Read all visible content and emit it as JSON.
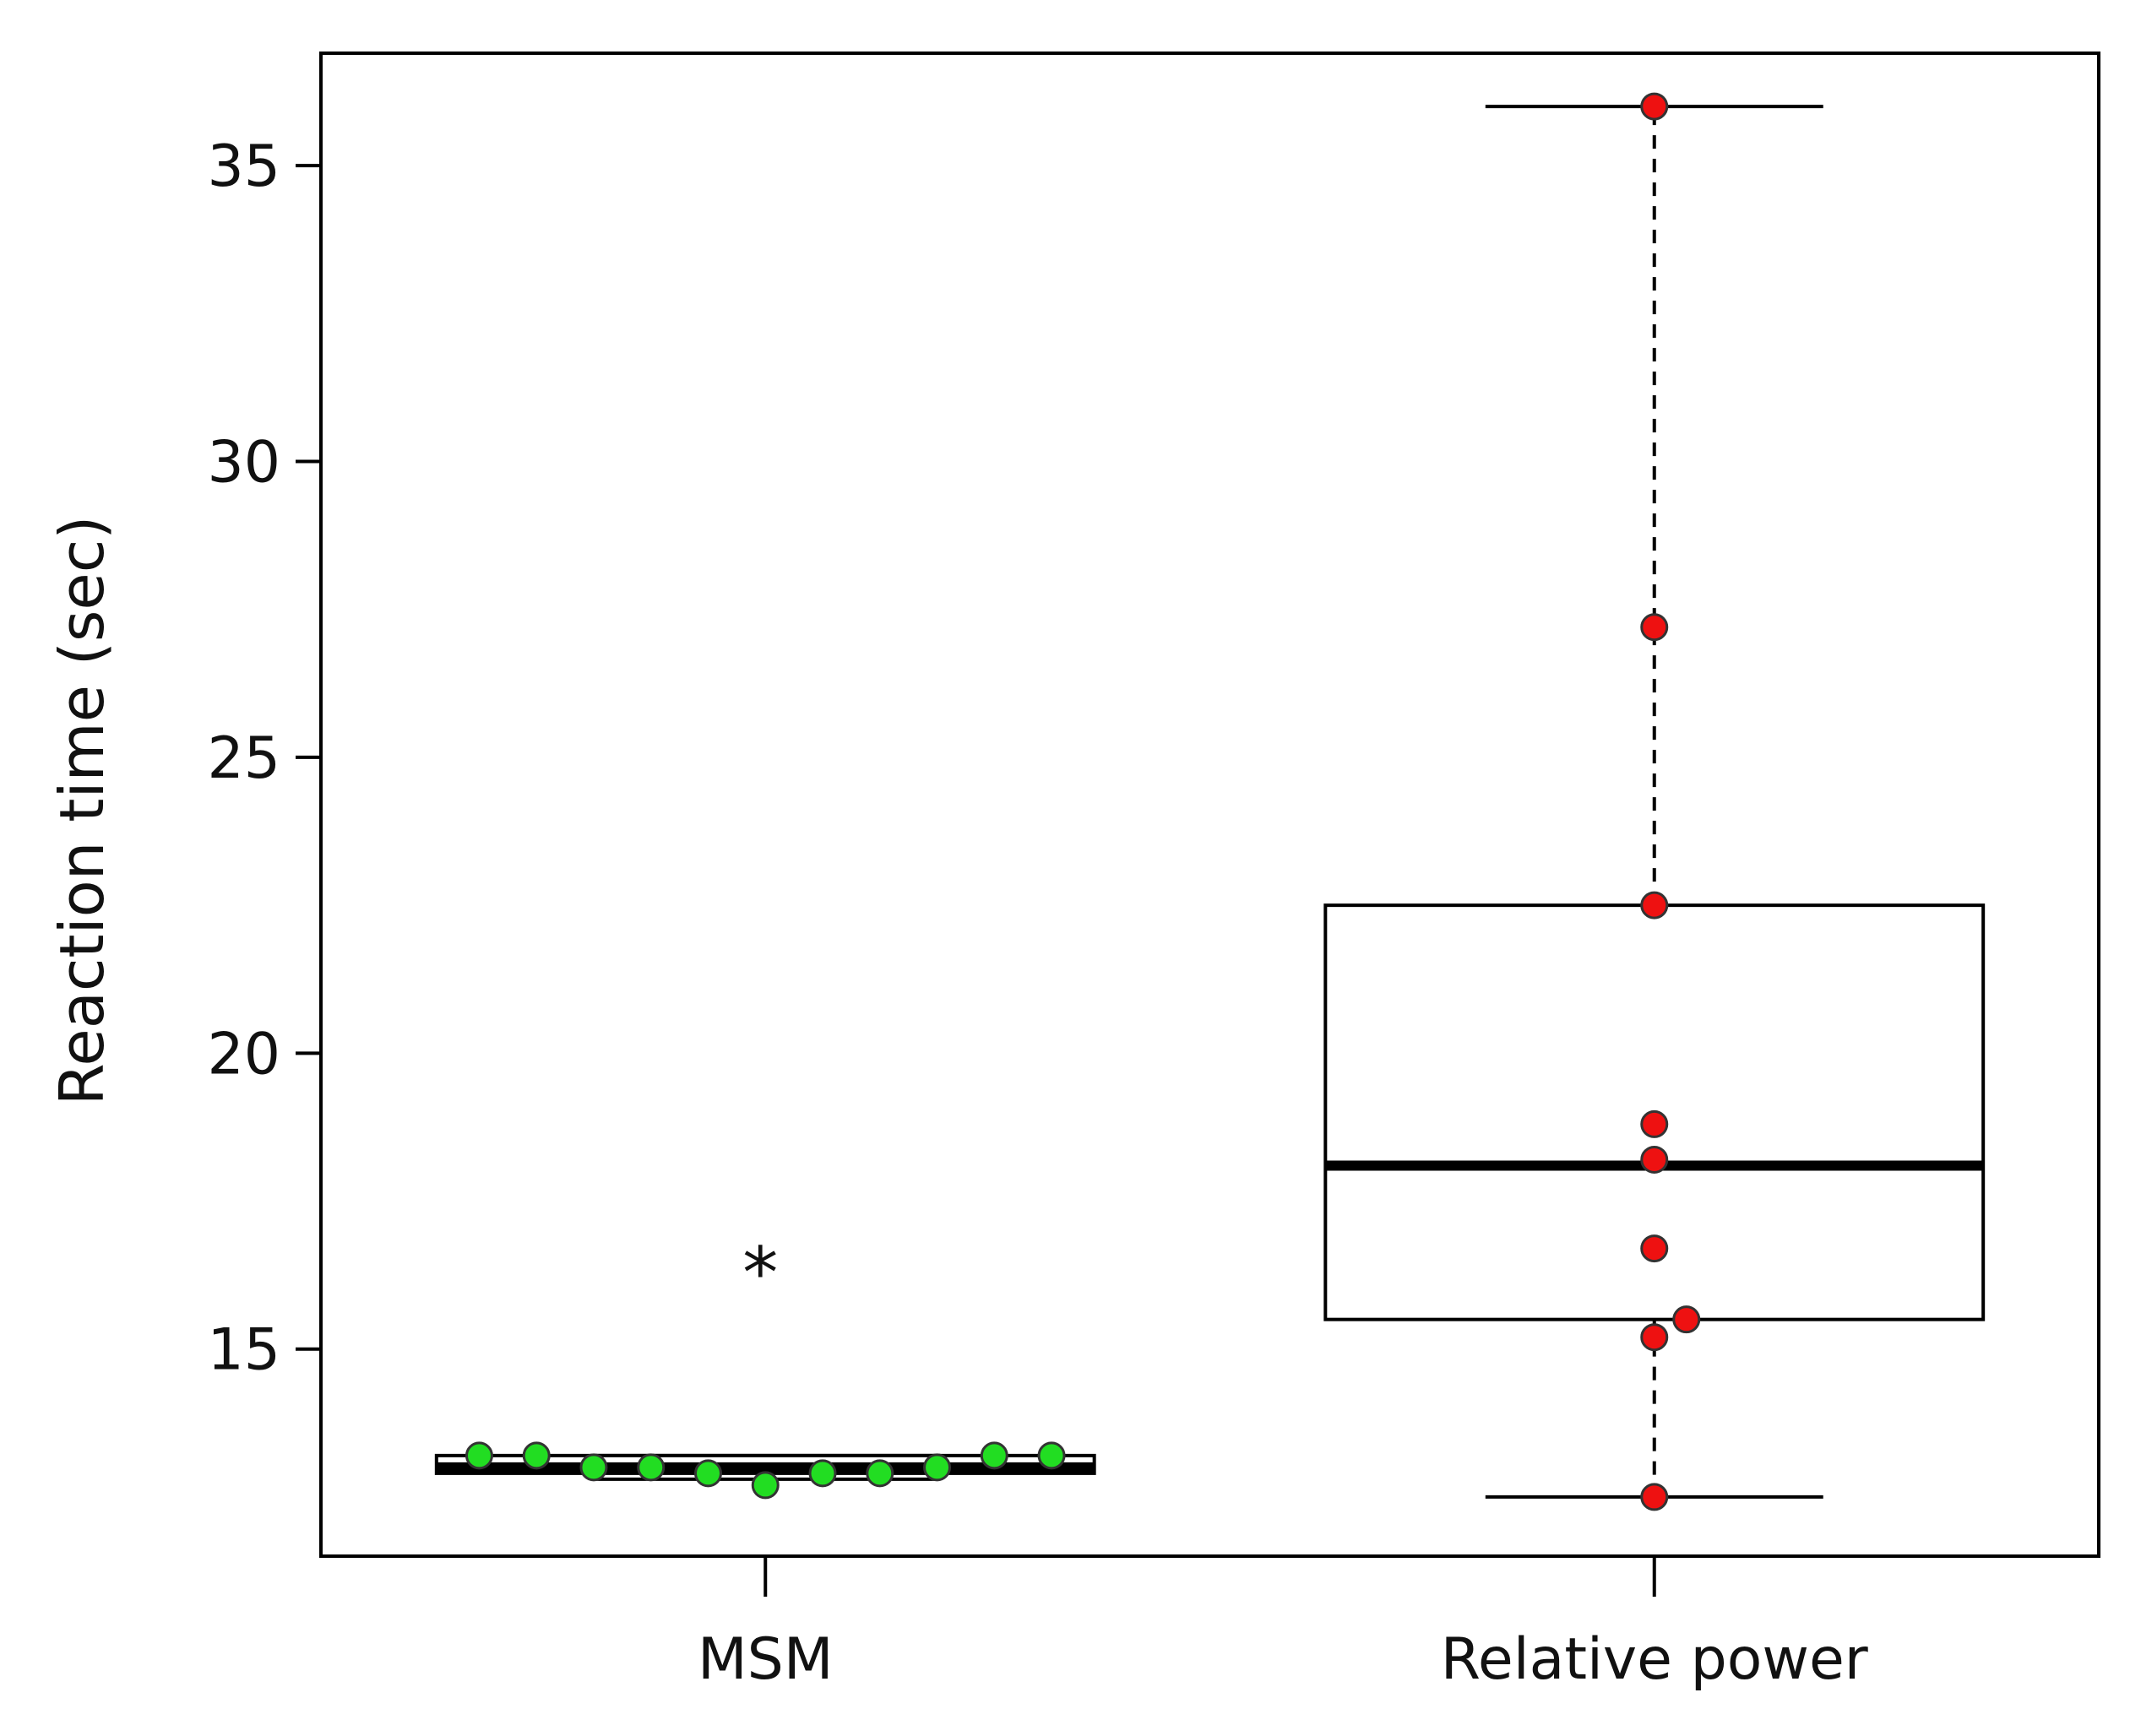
{
  "chart_data": {
    "type": "box",
    "title": "",
    "xlabel": "",
    "ylabel": "Reaction time (sec)",
    "ylim": [
      11.5,
      36.9
    ],
    "yticks": [
      15,
      20,
      25,
      30,
      35
    ],
    "grid": false,
    "categories": [
      "MSM",
      "Relative power"
    ],
    "boxes": [
      {
        "name": "MSM",
        "q1": 12.9,
        "median": 13.0,
        "q3": 13.2,
        "whisker_low": 12.8,
        "whisker_high": 13.2,
        "whisker_style": "solid",
        "point_color": "#22dd22",
        "points": [
          13.2,
          13.2,
          13.0,
          13.0,
          12.9,
          12.7,
          12.9,
          12.9,
          13.0,
          13.2,
          13.2
        ],
        "annotation": "*"
      },
      {
        "name": "Relative power",
        "q1": 15.5,
        "median": 18.1,
        "q3": 22.5,
        "whisker_low": 12.5,
        "whisker_high": 36.0,
        "whisker_style": "dashed",
        "point_color": "#ee1111",
        "points": [
          36.0,
          27.2,
          22.5,
          18.8,
          18.2,
          16.7,
          15.5,
          15.2,
          12.5
        ],
        "annotation": ""
      }
    ]
  }
}
